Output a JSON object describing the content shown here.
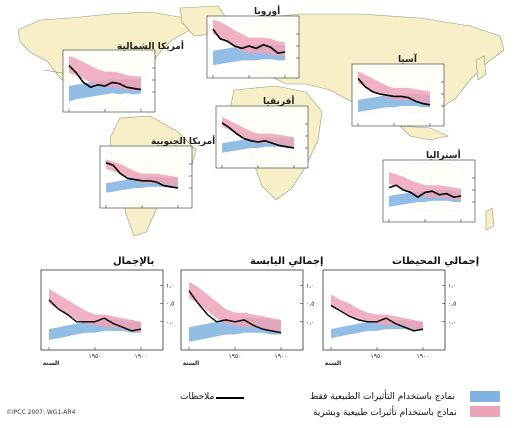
{
  "credit": "©IPCC 2007: WG1-AR4",
  "legend": {
    "observations": "ملاحظات",
    "natural_only": "نماذج باستخدام التأثيرات الطبيعية فقط",
    "natural_human": "نماذج باستخدام تأثيرات طبيعية وبشرية",
    "natural_color": "#7fb2e0",
    "combined_color": "#eda3b8",
    "observation_color": "#000000",
    "map_land_color": "#f6efc7",
    "map_ocean_color": "#ffffff"
  },
  "chart_data": [
    {
      "id": "north-america",
      "type": "area",
      "title": "أمريكا الشمالية",
      "xticks": [
        "",
        "",
        ""
      ],
      "yticks": [
        "",
        "",
        ""
      ],
      "xlabel": "",
      "ylabel": "",
      "xlim": [
        1900,
        2000
      ],
      "ylim": [
        -1,
        1
      ],
      "x": [
        1900,
        1910,
        1920,
        1930,
        1940,
        1950,
        1960,
        1970,
        1980,
        1990,
        2000
      ],
      "natural": {
        "low": [
          -0.55,
          -0.6,
          -0.55,
          -0.6,
          -0.55,
          -0.6,
          -0.65,
          -0.7,
          -0.75,
          -0.8,
          -0.9
        ],
        "high": [
          0.05,
          0.0,
          0.05,
          0.0,
          0.05,
          0.0,
          -0.05,
          -0.1,
          -0.15,
          -0.2,
          -0.25
        ]
      },
      "combined": {
        "low": [
          -0.45,
          -0.45,
          -0.4,
          -0.35,
          -0.3,
          -0.3,
          -0.25,
          -0.1,
          0.05,
          0.2,
          0.3
        ],
        "high": [
          0.15,
          0.15,
          0.2,
          0.3,
          0.35,
          0.35,
          0.45,
          0.6,
          0.75,
          0.9,
          1.0
        ]
      },
      "observations": [
        -0.4,
        -0.35,
        -0.3,
        -0.15,
        -0.1,
        -0.25,
        -0.2,
        -0.3,
        -0.1,
        0.3,
        0.6
      ]
    },
    {
      "id": "europe",
      "type": "area",
      "title": "أوروبا",
      "xticks": [
        "",
        "",
        ""
      ],
      "yticks": [
        "",
        "",
        ""
      ],
      "xlabel": "",
      "ylabel": "",
      "xlim": [
        1900,
        2000
      ],
      "ylim": [
        -1,
        1
      ],
      "x": [
        1900,
        1910,
        1920,
        1930,
        1940,
        1950,
        1960,
        1970,
        1980,
        1990,
        2000
      ],
      "natural": {
        "low": [
          -0.6,
          -0.6,
          -0.55,
          -0.55,
          -0.6,
          -0.6,
          -0.6,
          -0.65,
          -0.7,
          -0.75,
          -0.8
        ],
        "high": [
          0.0,
          0.05,
          0.05,
          0.1,
          0.05,
          0.0,
          0.0,
          -0.05,
          -0.1,
          -0.15,
          -0.2
        ]
      },
      "combined": {
        "low": [
          -0.45,
          -0.4,
          -0.35,
          -0.3,
          -0.3,
          -0.3,
          -0.2,
          -0.05,
          0.15,
          0.35,
          0.5
        ],
        "high": [
          0.15,
          0.2,
          0.3,
          0.35,
          0.35,
          0.35,
          0.5,
          0.65,
          0.85,
          1.0,
          1.1
        ]
      },
      "observations": [
        -0.25,
        -0.3,
        -0.05,
        0.05,
        -0.1,
        0.0,
        -0.1,
        0.0,
        0.2,
        0.3,
        0.7
      ]
    },
    {
      "id": "asia",
      "type": "area",
      "title": "آسيا",
      "xticks": [
        "",
        "",
        ""
      ],
      "yticks": [
        "",
        "",
        ""
      ],
      "xlabel": "",
      "ylabel": "",
      "xlim": [
        1900,
        2000
      ],
      "ylim": [
        -1,
        1
      ],
      "x": [
        1900,
        1910,
        1920,
        1930,
        1940,
        1950,
        1960,
        1970,
        1980,
        1990,
        2000
      ],
      "natural": {
        "low": [
          -0.55,
          -0.55,
          -0.5,
          -0.5,
          -0.5,
          -0.55,
          -0.55,
          -0.6,
          -0.65,
          -0.7,
          -0.75
        ],
        "high": [
          -0.05,
          -0.05,
          0.0,
          0.0,
          -0.05,
          -0.05,
          -0.05,
          -0.1,
          -0.15,
          -0.2,
          -0.25
        ]
      },
      "combined": {
        "low": [
          -0.4,
          -0.35,
          -0.3,
          -0.25,
          -0.25,
          -0.25,
          -0.15,
          0.0,
          0.15,
          0.3,
          0.45
        ],
        "high": [
          0.1,
          0.15,
          0.2,
          0.25,
          0.25,
          0.25,
          0.35,
          0.5,
          0.65,
          0.8,
          0.95
        ]
      },
      "observations": [
        -0.45,
        -0.4,
        -0.3,
        -0.15,
        -0.1,
        -0.1,
        -0.05,
        0.0,
        0.1,
        0.3,
        0.65
      ]
    },
    {
      "id": "africa",
      "type": "area",
      "title": "أفريقيا",
      "xticks": [
        "",
        "",
        ""
      ],
      "yticks": [
        "",
        "",
        ""
      ],
      "xlabel": "",
      "ylabel": "",
      "xlim": [
        1900,
        2000
      ],
      "ylim": [
        -1,
        1
      ],
      "x": [
        1900,
        1910,
        1920,
        1930,
        1940,
        1950,
        1960,
        1970,
        1980,
        1990,
        2000
      ],
      "natural": {
        "low": [
          -0.5,
          -0.5,
          -0.45,
          -0.45,
          -0.45,
          -0.5,
          -0.5,
          -0.55,
          -0.6,
          -0.65,
          -0.7
        ],
        "high": [
          -0.1,
          -0.1,
          -0.05,
          -0.05,
          -0.05,
          -0.1,
          -0.1,
          -0.15,
          -0.2,
          -0.25,
          -0.3
        ]
      },
      "combined": {
        "low": [
          -0.45,
          -0.4,
          -0.35,
          -0.3,
          -0.3,
          -0.3,
          -0.2,
          -0.05,
          0.1,
          0.25,
          0.4
        ],
        "high": [
          -0.05,
          0.0,
          0.05,
          0.1,
          0.1,
          0.1,
          0.2,
          0.35,
          0.5,
          0.65,
          0.8
        ]
      },
      "observations": [
        -0.5,
        -0.45,
        -0.4,
        -0.3,
        -0.2,
        -0.25,
        -0.2,
        -0.1,
        0.1,
        0.35,
        0.55
      ]
    },
    {
      "id": "south-america",
      "type": "area",
      "title": "أمريكا الجنوبية",
      "xticks": [
        "",
        "",
        ""
      ],
      "yticks": [
        "",
        "",
        ""
      ],
      "xlabel": "",
      "ylabel": "",
      "xlim": [
        1900,
        2000
      ],
      "ylim": [
        -1,
        1
      ],
      "x": [
        1900,
        1910,
        1920,
        1930,
        1940,
        1950,
        1960,
        1970,
        1980,
        1990,
        2000
      ],
      "natural": {
        "low": [
          -0.5,
          -0.5,
          -0.45,
          -0.45,
          -0.45,
          -0.5,
          -0.5,
          -0.55,
          -0.6,
          -0.65,
          -0.7
        ],
        "high": [
          -0.1,
          -0.1,
          -0.05,
          -0.05,
          -0.05,
          -0.1,
          -0.1,
          -0.15,
          -0.2,
          -0.25,
          -0.3
        ]
      },
      "combined": {
        "low": [
          -0.45,
          -0.4,
          -0.35,
          -0.3,
          -0.3,
          -0.3,
          -0.2,
          -0.05,
          0.1,
          0.2,
          0.3
        ],
        "high": [
          -0.05,
          0.0,
          0.05,
          0.1,
          0.1,
          0.1,
          0.2,
          0.35,
          0.5,
          0.6,
          0.7
        ]
      },
      "observations": [
        -0.5,
        -0.45,
        -0.4,
        -0.25,
        -0.2,
        -0.2,
        -0.15,
        -0.1,
        0.1,
        0.45,
        0.55
      ]
    },
    {
      "id": "australia",
      "type": "area",
      "title": "أستراليا",
      "xticks": [
        "",
        "",
        ""
      ],
      "yticks": [
        "",
        "",
        ""
      ],
      "xlabel": "",
      "ylabel": "",
      "xlim": [
        1900,
        2000
      ],
      "ylim": [
        -1,
        1
      ],
      "x": [
        1900,
        1910,
        1920,
        1930,
        1940,
        1950,
        1960,
        1970,
        1980,
        1990,
        2000
      ],
      "natural": {
        "low": [
          -0.5,
          -0.5,
          -0.45,
          -0.45,
          -0.45,
          -0.5,
          -0.5,
          -0.55,
          -0.6,
          -0.65,
          -0.7
        ],
        "high": [
          -0.05,
          -0.05,
          0.0,
          0.0,
          0.0,
          -0.05,
          -0.05,
          -0.1,
          -0.15,
          -0.2,
          -0.25
        ]
      },
      "combined": {
        "low": [
          -0.4,
          -0.4,
          -0.35,
          -0.3,
          -0.3,
          -0.3,
          -0.2,
          -0.1,
          0.05,
          0.15,
          0.25
        ],
        "high": [
          0.05,
          0.1,
          0.15,
          0.2,
          0.2,
          0.2,
          0.3,
          0.4,
          0.55,
          0.65,
          0.75
        ]
      },
      "observations": [
        -0.25,
        -0.3,
        -0.15,
        -0.2,
        -0.05,
        -0.1,
        -0.3,
        -0.1,
        0.0,
        0.2,
        0.1
      ]
    },
    {
      "id": "global",
      "type": "area",
      "title": "بالإجمال",
      "xticks": [
        "",
        "١٩٥٠",
        "١٩٠٠"
      ],
      "yticks": [
        "١,٠",
        "٠,٥",
        "٠,٠"
      ],
      "xlabel": "السنة",
      "ylabel": "",
      "xlim": [
        1900,
        2000
      ],
      "ylim": [
        -0.5,
        1.2
      ],
      "x": [
        1900,
        1910,
        1920,
        1930,
        1940,
        1950,
        1960,
        1970,
        1980,
        1990,
        2000
      ],
      "natural": {
        "low": [
          -0.3,
          -0.3,
          -0.25,
          -0.25,
          -0.25,
          -0.3,
          -0.3,
          -0.35,
          -0.4,
          -0.45,
          -0.5
        ],
        "high": [
          0.0,
          0.0,
          0.05,
          0.05,
          0.05,
          0.0,
          0.0,
          -0.05,
          -0.1,
          -0.15,
          -0.2
        ]
      },
      "combined": {
        "low": [
          -0.3,
          -0.25,
          -0.2,
          -0.15,
          -0.15,
          -0.1,
          -0.05,
          0.05,
          0.2,
          0.35,
          0.5
        ],
        "high": [
          0.0,
          0.05,
          0.1,
          0.15,
          0.2,
          0.2,
          0.3,
          0.45,
          0.6,
          0.75,
          0.9
        ]
      },
      "observations": [
        -0.2,
        -0.25,
        -0.15,
        -0.05,
        0.1,
        0.0,
        0.0,
        0.0,
        0.2,
        0.35,
        0.6
      ]
    },
    {
      "id": "global-land",
      "type": "area",
      "title": "إجمالي اليابسة",
      "xticks": [
        "",
        "١٩٥٠",
        "١٩٠٠"
      ],
      "yticks": [
        "١,٠",
        "٠,٥",
        "٠,٠"
      ],
      "xlabel": "السنة",
      "ylabel": "",
      "xlim": [
        1900,
        2000
      ],
      "ylim": [
        -0.5,
        1.2
      ],
      "x": [
        1900,
        1910,
        1920,
        1930,
        1940,
        1950,
        1960,
        1970,
        1980,
        1990,
        2000
      ],
      "natural": {
        "low": [
          -0.35,
          -0.35,
          -0.3,
          -0.3,
          -0.3,
          -0.35,
          -0.35,
          -0.4,
          -0.45,
          -0.5,
          -0.55
        ],
        "high": [
          0.05,
          0.05,
          0.1,
          0.1,
          0.1,
          0.05,
          0.05,
          0.0,
          -0.05,
          -0.1,
          -0.15
        ]
      },
      "combined": {
        "low": [
          -0.3,
          -0.25,
          -0.2,
          -0.15,
          -0.15,
          -0.1,
          -0.05,
          0.1,
          0.3,
          0.5,
          0.65
        ],
        "high": [
          0.05,
          0.1,
          0.15,
          0.2,
          0.25,
          0.25,
          0.35,
          0.55,
          0.75,
          0.95,
          1.1
        ]
      },
      "observations": [
        -0.3,
        -0.25,
        -0.2,
        -0.1,
        0.05,
        0.0,
        0.05,
        0.0,
        0.2,
        0.5,
        0.85
      ]
    },
    {
      "id": "global-ocean",
      "type": "area",
      "title": "إجمالي المحيطات",
      "xticks": [
        "",
        "١٩٥٠",
        "١٩٠٠"
      ],
      "yticks": [
        "١,٠",
        "٠,٥",
        "٠,٠"
      ],
      "xlabel": "السنة",
      "ylabel": "",
      "xlim": [
        1900,
        2000
      ],
      "ylim": [
        -0.5,
        1.2
      ],
      "x": [
        1900,
        1910,
        1920,
        1930,
        1940,
        1950,
        1960,
        1970,
        1980,
        1990,
        2000
      ],
      "natural": {
        "low": [
          -0.25,
          -0.25,
          -0.2,
          -0.2,
          -0.2,
          -0.25,
          -0.25,
          -0.3,
          -0.35,
          -0.4,
          -0.45
        ],
        "high": [
          0.0,
          0.0,
          0.05,
          0.05,
          0.05,
          0.0,
          0.0,
          -0.05,
          -0.1,
          -0.15,
          -0.2
        ]
      },
      "combined": {
        "low": [
          -0.25,
          -0.2,
          -0.15,
          -0.1,
          -0.1,
          -0.05,
          0.0,
          0.05,
          0.15,
          0.3,
          0.4
        ],
        "high": [
          0.0,
          0.05,
          0.1,
          0.15,
          0.2,
          0.2,
          0.25,
          0.35,
          0.5,
          0.6,
          0.75
        ]
      },
      "observations": [
        -0.2,
        -0.25,
        -0.15,
        -0.05,
        0.1,
        0.0,
        0.0,
        0.05,
        0.15,
        0.3,
        0.45
      ]
    }
  ]
}
